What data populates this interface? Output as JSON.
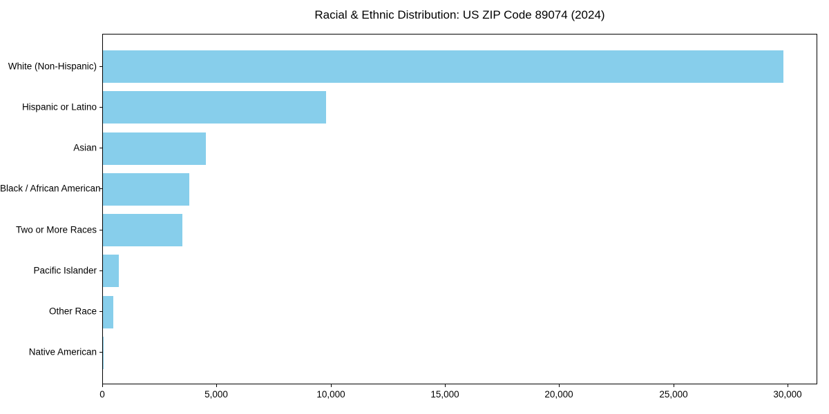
{
  "chart_data": {
    "type": "bar",
    "orientation": "horizontal",
    "title": "Racial & Ethnic Distribution: US ZIP Code 89074 (2024)",
    "categories": [
      "White (Non-Hispanic)",
      "Hispanic or Latino",
      "Asian",
      "Black / African American",
      "Two or More Races",
      "Pacific Islander",
      "Other Race",
      "Native American"
    ],
    "values": [
      29850,
      9800,
      4500,
      3780,
      3470,
      700,
      450,
      40
    ],
    "bar_color": "#87CEEB",
    "xlabel": "",
    "ylabel": "",
    "xlim": [
      0,
      31300
    ],
    "x_ticks": [
      {
        "value": 0,
        "label": "0"
      },
      {
        "value": 5000,
        "label": "5,000"
      },
      {
        "value": 10000,
        "label": "10,000"
      },
      {
        "value": 15000,
        "label": "15,000"
      },
      {
        "value": 20000,
        "label": "20,000"
      },
      {
        "value": 25000,
        "label": "25,000"
      },
      {
        "value": 30000,
        "label": "30,000"
      }
    ],
    "grid": false,
    "legend": null
  }
}
